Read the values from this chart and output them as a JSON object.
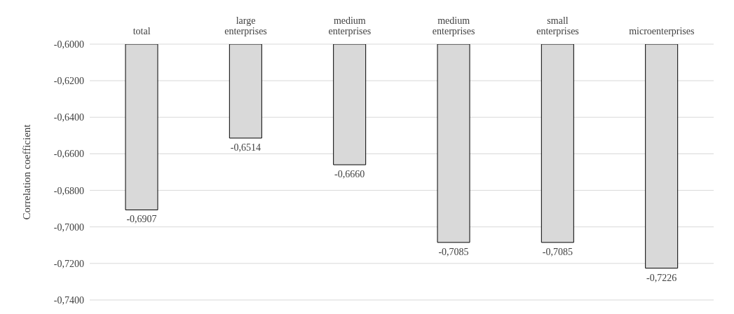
{
  "chart_data": {
    "type": "bar",
    "ylabel": "Correlation coefficient",
    "categories": [
      "total",
      "large enterprises",
      "medium enterprises",
      "medium enterprises",
      "small enterprises",
      "microenterprises"
    ],
    "values": [
      -0.6907,
      -0.6514,
      -0.666,
      -0.7085,
      -0.7085,
      -0.7226
    ],
    "value_labels": [
      "-0,6907",
      "-0,6514",
      "-0,6660",
      "-0,7085",
      "-0,7085",
      "-0,7226"
    ],
    "color": "#d9d9d9",
    "ylim": [
      -0.74,
      -0.6
    ],
    "yticks": [
      {
        "value": -0.74,
        "label": "-0,7400"
      },
      {
        "value": -0.72,
        "label": "-0,7200"
      },
      {
        "value": -0.7,
        "label": "-0,7000"
      },
      {
        "value": -0.68,
        "label": "-0,6800"
      },
      {
        "value": -0.66,
        "label": "-0,6600"
      },
      {
        "value": -0.64,
        "label": "-0,6400"
      },
      {
        "value": -0.62,
        "label": "-0,6200"
      },
      {
        "value": -0.6,
        "label": "-0,6000"
      }
    ],
    "grid": "y"
  }
}
